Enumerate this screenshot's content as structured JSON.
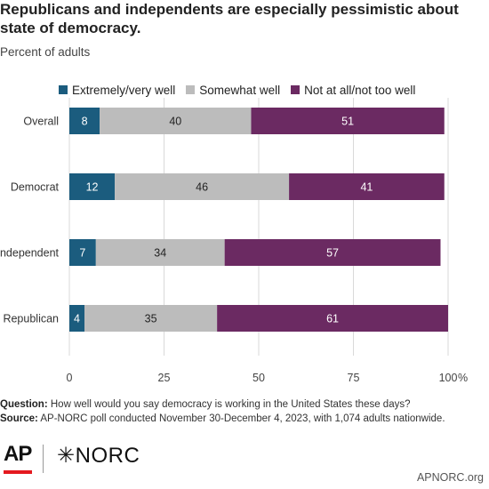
{
  "chart_data": {
    "type": "bar",
    "orientation": "horizontal",
    "stacked": true,
    "title": "Republicans and independents are especially pessimistic about state of democracy.",
    "subtitle": "Percent of adults",
    "categories": [
      "Overall",
      "Democrat",
      "Independent",
      "Republican"
    ],
    "series": [
      {
        "name": "Extremely/very well",
        "values": [
          8,
          12,
          7,
          4
        ],
        "color": "#1b5c7e"
      },
      {
        "name": "Somewhat well",
        "values": [
          40,
          46,
          34,
          35
        ],
        "color": "#bcbcbc"
      },
      {
        "name": "Not at all/not too well",
        "values": [
          51,
          41,
          57,
          61
        ],
        "color": "#6b2a62"
      }
    ],
    "xlim": [
      0,
      100
    ],
    "xticks": [
      "0",
      "25",
      "50",
      "75",
      "100"
    ],
    "x_unit": "%",
    "grid": true,
    "legend_position": "top"
  },
  "footer": {
    "question_label": "Question:",
    "question_text": "How well would you say democracy is working in the United States these days?",
    "source_label": "Source:",
    "source_text": "AP-NORC poll conducted November 30-December 4, 2023, with 1,074 adults nationwide.",
    "logo_ap": "AP",
    "logo_norc": "NORC",
    "website": "APNORC.org"
  },
  "colors": {
    "ap_red": "#e4191f"
  },
  "icons": {
    "norc_mark": "asterisk-icon"
  }
}
